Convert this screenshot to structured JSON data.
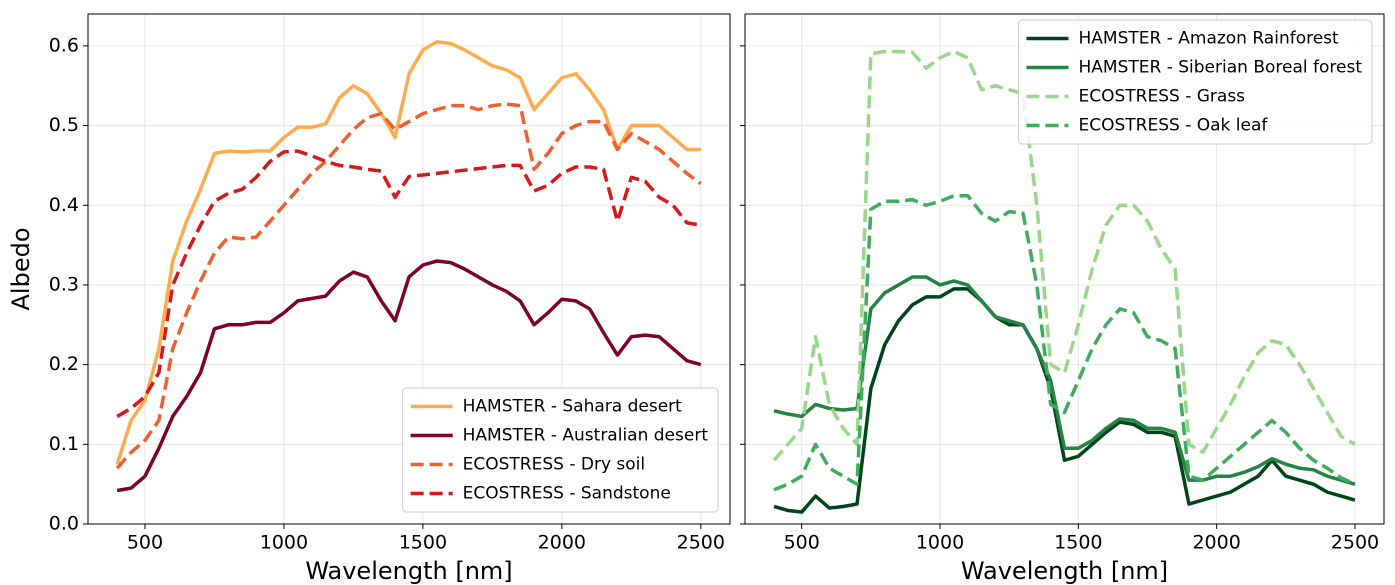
{
  "chart_data": [
    {
      "type": "line",
      "ylabel": "Albedo",
      "xlabel": "Wavelength [nm]",
      "xlim": [
        295,
        2605
      ],
      "ylim": [
        0,
        0.64
      ],
      "xticks": [
        500,
        1000,
        1500,
        2000,
        2500
      ],
      "yticks": [
        {
          "value": 0,
          "label": "0.0"
        },
        0.1,
        0.2,
        0.3,
        0.4,
        0.5,
        0.6
      ],
      "grid": true,
      "legend": "lower right",
      "x": [
        400,
        450,
        500,
        550,
        600,
        650,
        700,
        750,
        800,
        850,
        900,
        950,
        1000,
        1050,
        1100,
        1150,
        1200,
        1250,
        1300,
        1350,
        1400,
        1450,
        1500,
        1550,
        1600,
        1650,
        1700,
        1750,
        1800,
        1850,
        1900,
        1950,
        2000,
        2050,
        2100,
        2150,
        2200,
        2250,
        2300,
        2350,
        2400,
        2450,
        2500
      ],
      "series": [
        {
          "name": "HAMSTER - Sahara desert",
          "color": "#fdab4e",
          "linestyle": "solid",
          "values": [
            0.075,
            0.13,
            0.155,
            0.22,
            0.33,
            0.38,
            0.42,
            0.465,
            0.468,
            0.467,
            0.468,
            0.468,
            0.485,
            0.498,
            0.498,
            0.502,
            0.535,
            0.55,
            0.54,
            0.515,
            0.485,
            0.565,
            0.595,
            0.605,
            0.603,
            0.595,
            0.585,
            0.575,
            0.57,
            0.56,
            0.52,
            0.54,
            0.56,
            0.565,
            0.545,
            0.52,
            0.47,
            0.5,
            0.5,
            0.5,
            0.485,
            0.47,
            0.47
          ]
        },
        {
          "name": "HAMSTER - Australian desert",
          "color": "#7f0028",
          "linestyle": "solid",
          "values": [
            0.042,
            0.045,
            0.06,
            0.095,
            0.135,
            0.16,
            0.19,
            0.245,
            0.25,
            0.25,
            0.253,
            0.253,
            0.265,
            0.28,
            0.283,
            0.286,
            0.305,
            0.316,
            0.31,
            0.28,
            0.255,
            0.31,
            0.325,
            0.33,
            0.328,
            0.32,
            0.31,
            0.3,
            0.292,
            0.28,
            0.25,
            0.265,
            0.282,
            0.28,
            0.27,
            0.24,
            0.212,
            0.235,
            0.237,
            0.235,
            0.22,
            0.205,
            0.2
          ]
        },
        {
          "name": "ECOSTRESS - Dry soil",
          "color": "#f05f2f",
          "linestyle": "dashed",
          "values": [
            0.07,
            0.09,
            0.105,
            0.13,
            0.22,
            0.265,
            0.305,
            0.34,
            0.36,
            0.358,
            0.36,
            0.38,
            0.4,
            0.42,
            0.44,
            0.455,
            0.475,
            0.495,
            0.51,
            0.515,
            0.495,
            0.505,
            0.515,
            0.52,
            0.525,
            0.525,
            0.52,
            0.525,
            0.527,
            0.525,
            0.445,
            0.465,
            0.49,
            0.5,
            0.505,
            0.505,
            0.47,
            0.49,
            0.48,
            0.47,
            0.455,
            0.44,
            0.427
          ]
        },
        {
          "name": "ECOSTRESS - Sandstone",
          "color": "#d7191c",
          "linestyle": "dashed",
          "values": [
            0.135,
            0.145,
            0.16,
            0.19,
            0.3,
            0.34,
            0.375,
            0.405,
            0.415,
            0.42,
            0.435,
            0.455,
            0.467,
            0.468,
            0.462,
            0.455,
            0.45,
            0.448,
            0.445,
            0.443,
            0.41,
            0.436,
            0.438,
            0.44,
            0.442,
            0.444,
            0.446,
            0.448,
            0.45,
            0.45,
            0.418,
            0.425,
            0.44,
            0.448,
            0.448,
            0.445,
            0.38,
            0.435,
            0.43,
            0.41,
            0.4,
            0.378,
            0.375
          ]
        }
      ]
    },
    {
      "type": "line",
      "xlabel": "Wavelength [nm]",
      "sharey": true,
      "xlim": [
        295,
        2605
      ],
      "ylim": [
        0,
        0.64
      ],
      "xticks": [
        500,
        1000,
        1500,
        2000,
        2500
      ],
      "grid": true,
      "legend": "upper right",
      "x": [
        400,
        450,
        500,
        550,
        600,
        650,
        700,
        750,
        800,
        850,
        900,
        950,
        1000,
        1050,
        1100,
        1150,
        1200,
        1250,
        1300,
        1350,
        1400,
        1450,
        1500,
        1550,
        1600,
        1650,
        1700,
        1750,
        1800,
        1850,
        1900,
        1950,
        2000,
        2050,
        2100,
        2150,
        2200,
        2250,
        2300,
        2350,
        2400,
        2450,
        2500
      ],
      "series": [
        {
          "name": "HAMSTER - Amazon Rainforest",
          "color": "#00441b",
          "linestyle": "solid",
          "values": [
            0.022,
            0.017,
            0.015,
            0.035,
            0.02,
            0.022,
            0.025,
            0.17,
            0.225,
            0.255,
            0.275,
            0.285,
            0.285,
            0.295,
            0.295,
            0.28,
            0.26,
            0.25,
            0.25,
            0.22,
            0.17,
            0.08,
            0.085,
            0.1,
            0.115,
            0.128,
            0.125,
            0.115,
            0.115,
            0.11,
            0.025,
            0.03,
            0.035,
            0.04,
            0.05,
            0.06,
            0.08,
            0.06,
            0.055,
            0.05,
            0.04,
            0.035,
            0.03
          ]
        },
        {
          "name": "HAMSTER - Siberian Boreal forest",
          "color": "#238443",
          "linestyle": "solid",
          "values": [
            0.142,
            0.138,
            0.135,
            0.15,
            0.145,
            0.143,
            0.145,
            0.27,
            0.29,
            0.3,
            0.31,
            0.31,
            0.3,
            0.305,
            0.3,
            0.28,
            0.26,
            0.255,
            0.25,
            0.22,
            0.18,
            0.095,
            0.095,
            0.105,
            0.12,
            0.132,
            0.13,
            0.12,
            0.12,
            0.115,
            0.055,
            0.055,
            0.06,
            0.06,
            0.065,
            0.072,
            0.082,
            0.075,
            0.07,
            0.068,
            0.06,
            0.055,
            0.05
          ]
        },
        {
          "name": "ECOSTRESS - Grass",
          "color": "#98d68a",
          "linestyle": "dashed",
          "values": [
            0.08,
            0.1,
            0.12,
            0.235,
            0.15,
            0.12,
            0.1,
            0.59,
            0.593,
            0.593,
            0.592,
            0.572,
            0.585,
            0.593,
            0.585,
            0.545,
            0.55,
            0.545,
            0.54,
            0.4,
            0.2,
            0.19,
            0.25,
            0.32,
            0.375,
            0.4,
            0.4,
            0.38,
            0.345,
            0.32,
            0.1,
            0.09,
            0.12,
            0.15,
            0.185,
            0.215,
            0.23,
            0.225,
            0.2,
            0.17,
            0.14,
            0.11,
            0.1
          ]
        },
        {
          "name": "ECOSTRESS - Oak leaf",
          "color": "#41ab5d",
          "linestyle": "dashed",
          "values": [
            0.043,
            0.05,
            0.06,
            0.1,
            0.07,
            0.06,
            0.05,
            0.395,
            0.405,
            0.405,
            0.407,
            0.4,
            0.405,
            0.412,
            0.412,
            0.39,
            0.38,
            0.392,
            0.39,
            0.3,
            0.15,
            0.14,
            0.18,
            0.22,
            0.25,
            0.27,
            0.265,
            0.235,
            0.23,
            0.22,
            0.06,
            0.055,
            0.07,
            0.085,
            0.1,
            0.115,
            0.13,
            0.115,
            0.095,
            0.08,
            0.07,
            0.058,
            0.05
          ]
        }
      ]
    }
  ]
}
